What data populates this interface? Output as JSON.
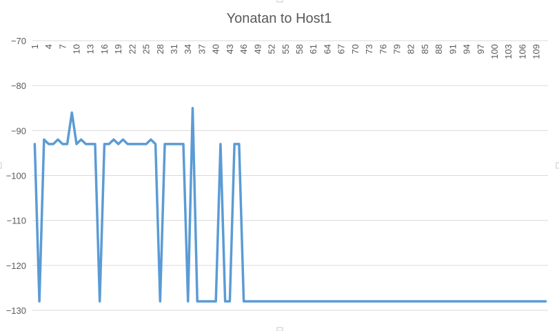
{
  "chart_data": {
    "type": "line",
    "title": "Yonatan to Host1",
    "xlabel": "",
    "ylabel": "",
    "ylim": [
      -130,
      -70
    ],
    "y_ticks": [
      -70,
      -80,
      -90,
      -100,
      -110,
      -120,
      -130
    ],
    "x_tick_labels": [
      "1",
      "4",
      "7",
      "10",
      "13",
      "16",
      "19",
      "22",
      "25",
      "28",
      "31",
      "34",
      "37",
      "40",
      "43",
      "46",
      "49",
      "52",
      "55",
      "58",
      "61",
      "64",
      "67",
      "70",
      "73",
      "76",
      "79",
      "82",
      "85",
      "88",
      "91",
      "94",
      "97",
      "100",
      "103",
      "106",
      "109"
    ],
    "x_axis_position": "top",
    "grid": true,
    "legend": "none",
    "series_color": "#5b9bd5",
    "series": [
      {
        "values": [
          -93,
          -128,
          -92,
          -93,
          -93,
          -92,
          -93,
          -93,
          -86,
          -93,
          -92,
          -93,
          -93,
          -93,
          -128,
          -93,
          -93,
          -92,
          -93,
          -92,
          -93,
          -93,
          -93,
          -93,
          -93,
          -92,
          -93,
          -128,
          -93,
          -93,
          -93,
          -93,
          -93,
          -128,
          -85,
          -128,
          -128,
          -128,
          -128,
          -128,
          -93,
          -128,
          -128,
          -93,
          -93,
          -128,
          -128,
          -128,
          -128,
          -128,
          -128,
          -128,
          -128,
          -128,
          -128,
          -128,
          -128,
          -128,
          -128,
          -128,
          -128,
          -128,
          -128,
          -128,
          -128,
          -128,
          -128,
          -128,
          -128,
          -128,
          -128,
          -128,
          -128,
          -128,
          -128,
          -128,
          -128,
          -128,
          -128,
          -128,
          -128,
          -128,
          -128,
          -128,
          -128,
          -128,
          -128,
          -128,
          -128,
          -128,
          -128,
          -128,
          -128,
          -128,
          -128,
          -128,
          -128,
          -128,
          -128,
          -128,
          -128,
          -128,
          -128,
          -128,
          -128,
          -128,
          -128,
          -128,
          -128,
          -128,
          -128
        ]
      }
    ]
  }
}
